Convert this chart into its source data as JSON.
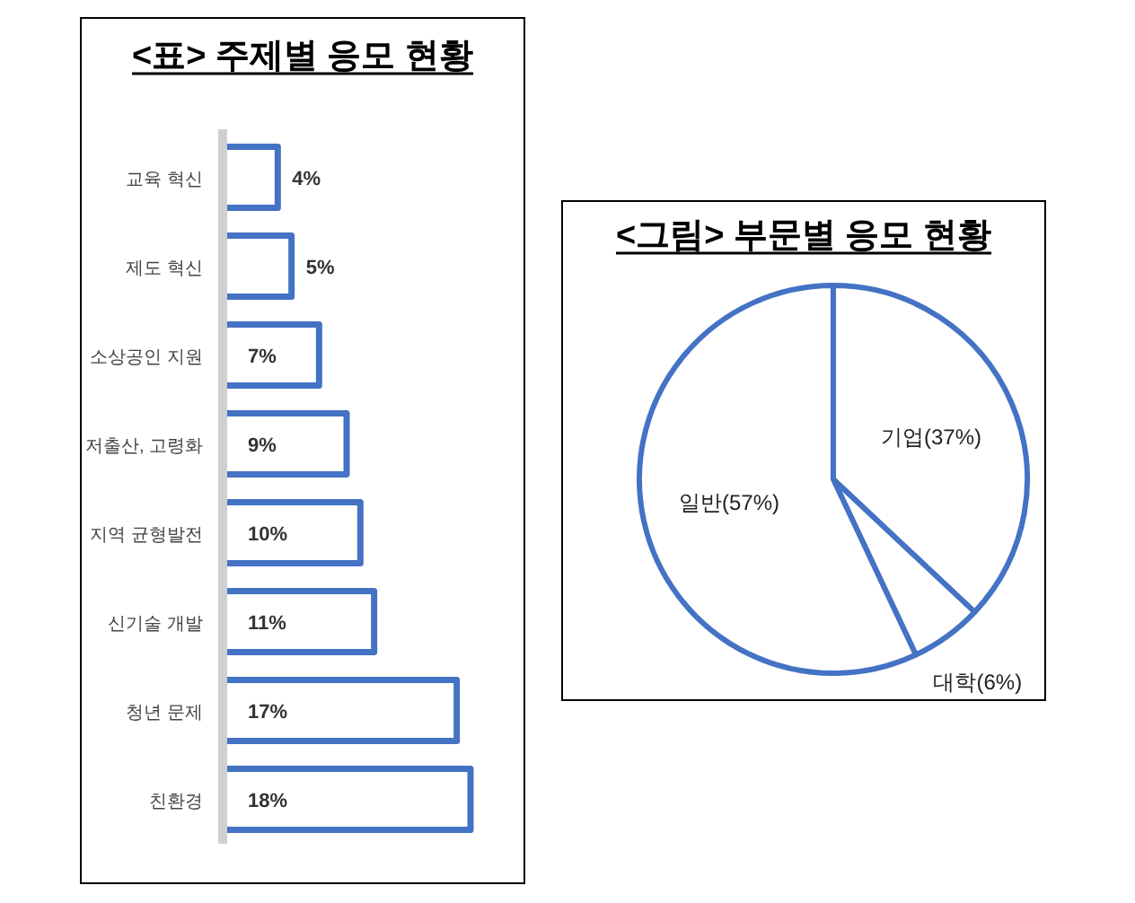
{
  "chart_data": [
    {
      "type": "bar",
      "orientation": "horizontal",
      "title": "<표> 주제별 응모 현황",
      "categories": [
        "교육 혁신",
        "제도 혁신",
        "소상공인 지원",
        "저출산, 고령화",
        "지역 균형발전",
        "신기술 개발",
        "청년 문제",
        "친환경"
      ],
      "values": [
        4,
        5,
        7,
        9,
        10,
        11,
        17,
        18
      ],
      "value_labels": [
        "4%",
        "5%",
        "7%",
        "9%",
        "10%",
        "11%",
        "17%",
        "18%"
      ],
      "color": "#4472c4"
    },
    {
      "type": "pie",
      "title": "<그림> 부문별 응모 현황",
      "categories": [
        "기업(37%)",
        "대학(6%)",
        "일반(57%)"
      ],
      "values": [
        37,
        6,
        57
      ],
      "colors": [
        "#ffffff",
        "#ffffff",
        "#ffffff"
      ]
    }
  ]
}
